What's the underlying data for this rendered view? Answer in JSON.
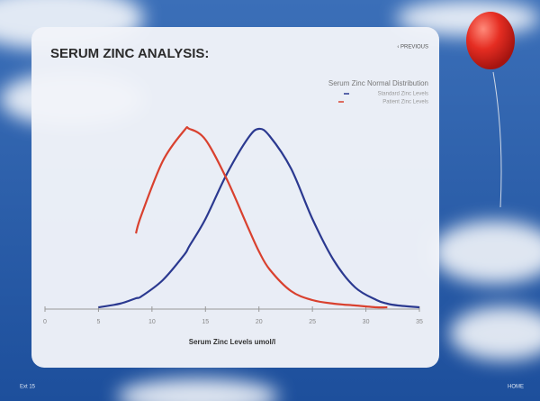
{
  "header": {
    "title": "SERUM ZINC ANALYSIS:",
    "previous": "‹ PREVIOUS"
  },
  "footer": {
    "left": "Ext 15",
    "right": "HOME"
  },
  "chart_data": {
    "type": "line",
    "title": "Serum Zinc Normal Distribution",
    "xlabel": "Serum Zinc Levels umol/l",
    "x": [
      5,
      7,
      8.5,
      9,
      11,
      13,
      13.5,
      15,
      17,
      19,
      20,
      21,
      23,
      25,
      27,
      29,
      31,
      32,
      33,
      35
    ],
    "series": [
      {
        "name": "Standard Zinc Levels",
        "color": "#2b3990",
        "values": [
          0.01,
          0.03,
          0.06,
          0.07,
          0.16,
          0.3,
          0.35,
          0.5,
          0.75,
          0.95,
          1.0,
          0.96,
          0.78,
          0.5,
          0.27,
          0.12,
          0.05,
          0.03,
          0.02,
          0.01
        ]
      },
      {
        "name": "Patient Zinc Levels",
        "color": "#d9412f",
        "values": [
          null,
          null,
          0.42,
          0.52,
          0.82,
          0.99,
          1.0,
          0.94,
          0.72,
          0.45,
          0.32,
          0.22,
          0.1,
          0.05,
          0.03,
          0.02,
          0.01,
          0.01,
          null,
          null
        ]
      }
    ],
    "xlim": [
      0,
      35
    ],
    "xticks": [
      0,
      5,
      10,
      15,
      20,
      25,
      30,
      35
    ],
    "ylim": [
      0,
      1
    ]
  }
}
